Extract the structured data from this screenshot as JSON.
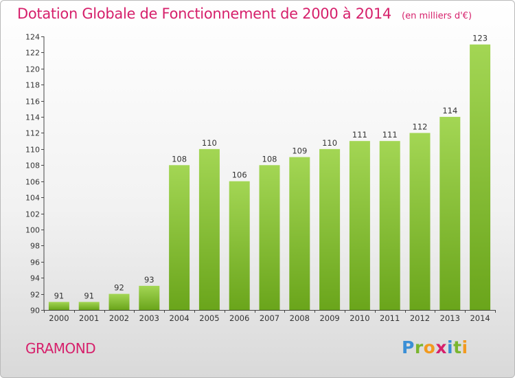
{
  "header": {
    "title": "Dotation Globale de Fonctionnement de 2000 à 2014",
    "unit": "(en milliers d'€)"
  },
  "footer": {
    "commune": "GRAMOND",
    "logo": [
      "P",
      "r",
      "o",
      "x",
      "i",
      "t",
      "i"
    ]
  },
  "colors": {
    "title": "#d6206b",
    "bar_light": "#9fd14f",
    "bar_dark": "#6ba51c"
  },
  "chart_data": {
    "type": "bar",
    "title": "Dotation Globale de Fonctionnement de 2000 à 2014",
    "subtitle": "(en milliers d'€)",
    "xlabel": "",
    "ylabel": "",
    "categories": [
      "2000",
      "2001",
      "2002",
      "2003",
      "2004",
      "2005",
      "2006",
      "2007",
      "2008",
      "2009",
      "2010",
      "2011",
      "2012",
      "2013",
      "2014"
    ],
    "values": [
      91,
      91,
      92,
      93,
      108,
      110,
      106,
      108,
      109,
      110,
      111,
      111,
      112,
      114,
      123
    ],
    "ylim": [
      90,
      124
    ],
    "yticks": [
      90,
      92,
      94,
      96,
      98,
      100,
      102,
      104,
      106,
      108,
      110,
      112,
      114,
      116,
      118,
      120,
      122,
      124
    ],
    "grid": false,
    "legend": "none"
  }
}
